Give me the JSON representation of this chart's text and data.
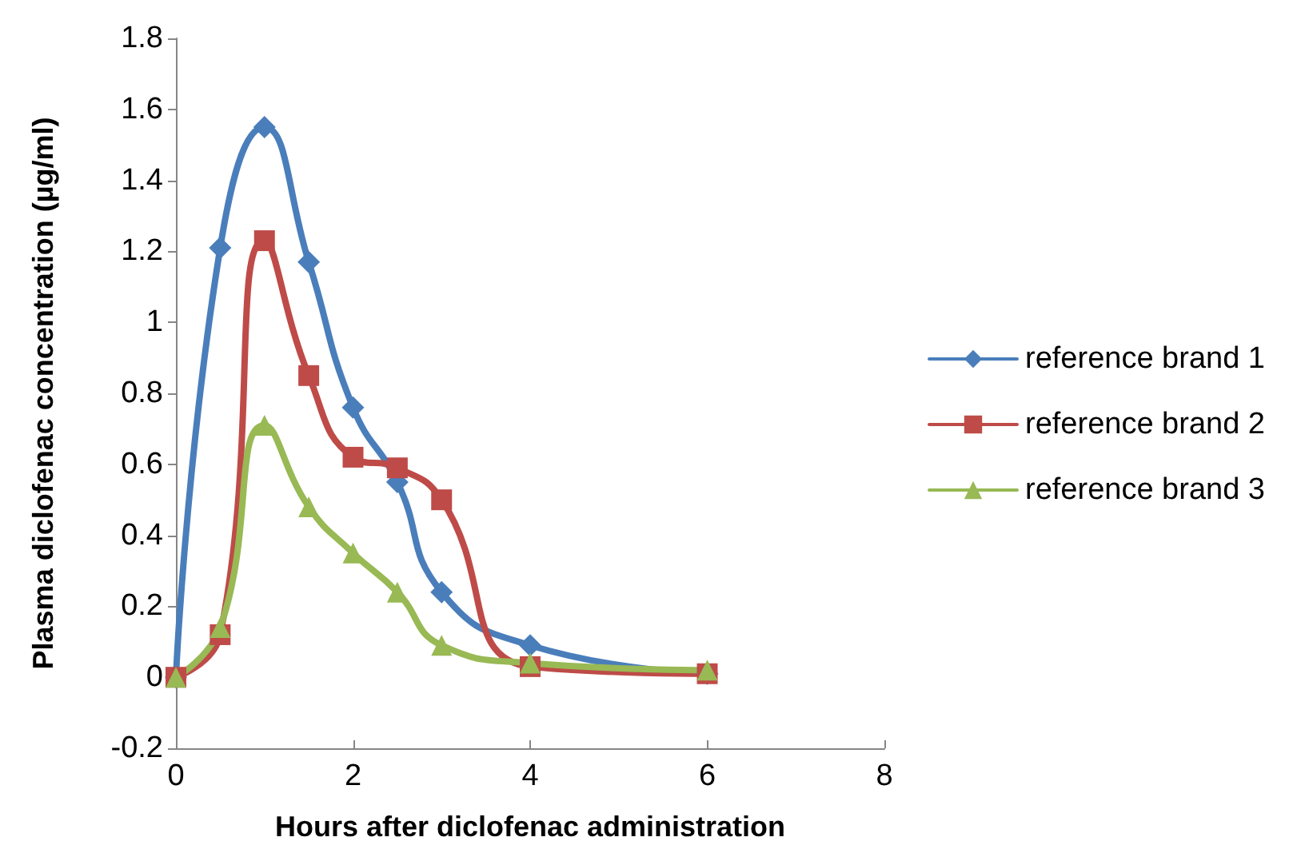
{
  "chart_data": {
    "type": "line",
    "xlabel": "Hours after diclofenac administration",
    "ylabel": "Plasma diclofenac concentration (µg/ml)",
    "x": [
      0,
      0.5,
      1,
      1.5,
      2,
      2.5,
      3,
      4,
      6
    ],
    "series": [
      {
        "name": "reference brand 1",
        "color": "#4a7ebb",
        "marker": "diamond",
        "values": [
          0,
          1.21,
          1.55,
          1.17,
          0.76,
          0.55,
          0.24,
          0.09,
          0.01
        ]
      },
      {
        "name": "reference brand 2",
        "color": "#be4b48",
        "marker": "square",
        "values": [
          0,
          0.12,
          1.23,
          0.85,
          0.62,
          0.59,
          0.5,
          0.03,
          0.01
        ]
      },
      {
        "name": "reference brand 3",
        "color": "#98b954",
        "marker": "triangle",
        "values": [
          0,
          0.14,
          0.71,
          0.48,
          0.35,
          0.24,
          0.09,
          0.04,
          0.02
        ]
      }
    ],
    "xlim": [
      0,
      8
    ],
    "xticks": [
      0,
      2,
      4,
      6,
      8
    ],
    "ylim": [
      -0.2,
      1.8
    ],
    "yticks": [
      -0.2,
      0,
      0.2,
      0.4,
      0.6,
      0.8,
      1,
      1.2,
      1.4,
      1.6,
      1.8
    ],
    "grid": false,
    "legend": "right",
    "line_style": "solid"
  }
}
